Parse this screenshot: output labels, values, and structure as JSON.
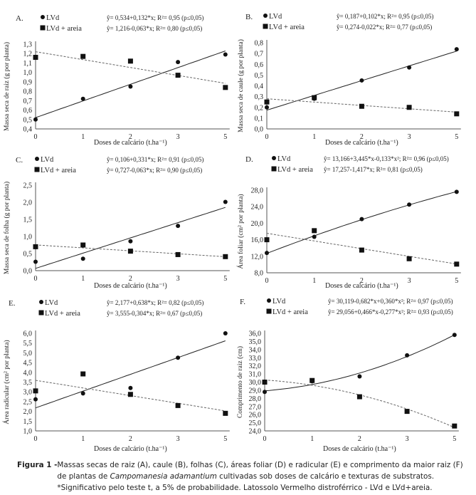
{
  "chart_data": [
    {
      "panel": "A.",
      "type": "scatter",
      "xlabel": "Doses de calcário  (t.ha⁻¹)",
      "ylabel": "Massa seca de raiz  (g por planta)",
      "categories": [
        "0",
        "1",
        "2",
        "3",
        "5"
      ],
      "ylim": [
        0.4,
        1.3
      ],
      "yticks": [
        "0,4",
        "0,5",
        "0,6",
        "0,7",
        "0,8",
        "0,9",
        "1,0",
        "1,1",
        "1,2",
        "1,3"
      ],
      "series": [
        {
          "name": "LVd",
          "marker": "circle",
          "trend": "linear",
          "equation": "ŷ= 0,534+0,132*x; R²= 0,95 (p≤0,05)",
          "values": [
            0.5,
            0.72,
            0.85,
            1.11,
            1.19
          ]
        },
        {
          "name": "LVd + areia",
          "marker": "square",
          "trend": "linear",
          "equation": "ŷ= 1,216-0,063*x; R²= 0,80 (p≤0,05)",
          "values": [
            1.16,
            1.17,
            1.12,
            0.97,
            0.84
          ]
        }
      ]
    },
    {
      "panel": "B.",
      "type": "scatter",
      "xlabel": "Doses de calcário  (t.ha⁻¹)",
      "ylabel": "Massa seca de caule  (g por planta)",
      "categories": [
        "0",
        "1",
        "2",
        "3",
        "5"
      ],
      "ylim": [
        0,
        0.8
      ],
      "yticks": [
        "0,0",
        "0,1",
        "0,2",
        "0,3",
        "0,4",
        "0,5",
        "0,6",
        "0,7",
        "0,8"
      ],
      "series": [
        {
          "name": "LVd",
          "marker": "circle",
          "trend": "linear",
          "equation": "ŷ= 0,187+0,102*x; R²= 0,95 (p≤0,05)",
          "values": [
            0.2,
            0.28,
            0.45,
            0.57,
            0.74
          ]
        },
        {
          "name": "LVd + areia",
          "marker": "square",
          "trend": "linear",
          "equation": "ŷ= 0,274-0,022*x; R²= 0,77 (p≤0,05)",
          "values": [
            0.25,
            0.29,
            0.21,
            0.2,
            0.14
          ]
        }
      ]
    },
    {
      "panel": "C.",
      "type": "scatter",
      "xlabel": "Doses de calcário  (t.ha⁻¹)",
      "ylabel": "Massa seca de folha  (g por planta)",
      "categories": [
        "0",
        "1",
        "2",
        "3",
        "5"
      ],
      "ylim": [
        0,
        2.5
      ],
      "yticks": [
        "0,0",
        "0,5",
        "1,0",
        "1,5",
        "2,0",
        "2,5"
      ],
      "series": [
        {
          "name": "LVd",
          "marker": "circle",
          "trend": "linear",
          "equation": "ŷ= 0,106+0,331*x; R²= 0,91 (p≤0,05)",
          "values": [
            0.26,
            0.35,
            0.86,
            1.31,
            2.01
          ]
        },
        {
          "name": "LVd + areia",
          "marker": "square",
          "trend": "linear",
          "equation": "ŷ= 0,727-0,063*x; R²= 0,90 (p≤0,05)",
          "values": [
            0.7,
            0.75,
            0.57,
            0.47,
            0.41
          ]
        }
      ]
    },
    {
      "panel": "D.",
      "type": "scatter",
      "xlabel": "Doses de calcário  (t.ha⁻¹)",
      "ylabel": "Área foliar  (cm² por planta)",
      "categories": [
        "0",
        "1",
        "2",
        "3",
        "5"
      ],
      "ylim": [
        8,
        28
      ],
      "yticks": [
        "8,0",
        "12,0",
        "16,0",
        "20,0",
        "24,0",
        "28,0"
      ],
      "series": [
        {
          "name": "LVd",
          "marker": "circle",
          "trend": "quadratic",
          "equation": "ŷ= 13,166+3,445*x-0,133*x²; R²= 0,96 (p≤0,05)",
          "values": [
            12.8,
            16.7,
            21.0,
            24.5,
            27.6
          ]
        },
        {
          "name": "LVd + areia",
          "marker": "square",
          "trend": "linear",
          "equation": "ŷ= 17,257-1,417*x; R²= 0,81 (p≤0,05)",
          "values": [
            16.0,
            18.2,
            13.5,
            11.4,
            10.1
          ]
        }
      ]
    },
    {
      "panel": "E.",
      "type": "scatter",
      "xlabel": "Doses de calcário  (t.ha⁻¹)",
      "ylabel": "Área radicular  (cm² por planta)",
      "categories": [
        "0",
        "1",
        "2",
        "3",
        "5"
      ],
      "ylim": [
        1,
        6
      ],
      "yticks": [
        "1,0",
        "1,5",
        "2,0",
        "2,5",
        "3,0",
        "3,5",
        "4,0",
        "4,5",
        "5,0",
        "5,5",
        "6,0"
      ],
      "series": [
        {
          "name": "LVd",
          "marker": "circle",
          "trend": "linear",
          "equation": "ŷ= 2,177+0,638*x; R²= 0,82 (p≤0,05)",
          "values": [
            2.62,
            2.92,
            3.2,
            4.75,
            6.0
          ]
        },
        {
          "name": "LVd + areia",
          "marker": "square",
          "trend": "linear",
          "equation": "ŷ= 3,555-0,304*x; R²= 0,67 (p≤0,05)",
          "values": [
            3.05,
            3.92,
            2.87,
            2.3,
            1.9
          ]
        }
      ]
    },
    {
      "panel": "F.",
      "type": "scatter",
      "xlabel": "Doses de calcário  (t.ha⁻¹)",
      "ylabel": "Comprimento  de raiz  (cm)",
      "categories": [
        "0",
        "1",
        "2",
        "3",
        "5"
      ],
      "ylim": [
        24,
        36
      ],
      "yticks": [
        "24,0",
        "25,0",
        "26,0",
        "27,0",
        "28,0",
        "29,0",
        "30,0",
        "31,0",
        "32,0",
        "33,0",
        "34,0",
        "35,0",
        "36,0"
      ],
      "series": [
        {
          "name": "LVd",
          "marker": "circle",
          "trend": "quadratic",
          "equation": "ŷ= 30,119-0,682*x+0,360*x²; R²= 0,97 (p≤0,05)",
          "values": [
            28.8,
            30.1,
            30.7,
            33.3,
            35.8
          ]
        },
        {
          "name": "LVd + areia",
          "marker": "square",
          "trend": "quadratic",
          "equation": "ŷ= 29,056+0,466*x-0,277*x²; R²= 0,93 (p≤0,05)",
          "values": [
            30.0,
            30.2,
            28.2,
            26.4,
            24.6
          ]
        }
      ]
    }
  ],
  "caption": {
    "lead": "Figura 1 - ",
    "part1": "Massas secas de raiz (A), caule (B), folhas (C), áreas foliar (D) e radicular (E) e comprimento da maior raiz (F) de plantas de ",
    "species": "Campomanesia adamantium",
    "part2": " cultivadas sob doses de calcário e texturas de substratos. *Significativo pelo teste t, a 5% de probabilidade. Latossolo Vermelho distroférrico - LVd e LVd+areia."
  }
}
